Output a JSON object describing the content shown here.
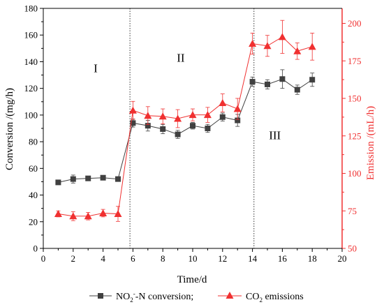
{
  "chart_data": {
    "type": "line",
    "xlabel": "Time/d",
    "ylabel_left": "Conversion /(mg/h)",
    "ylabel_right": "Emission /(mL/h)",
    "xlim": [
      0,
      20
    ],
    "ylim_left": [
      0,
      180
    ],
    "ylim_right": [
      50,
      210
    ],
    "x_ticks": [
      0,
      2,
      4,
      6,
      8,
      10,
      12,
      14,
      16,
      18,
      20
    ],
    "y_ticks_left": [
      0,
      20,
      40,
      60,
      80,
      100,
      120,
      140,
      160,
      180
    ],
    "y_ticks_right": [
      50,
      75,
      100,
      125,
      150,
      175,
      200
    ],
    "phase_dividers": [
      5.8,
      14.1
    ],
    "phase_labels": [
      {
        "text": "I",
        "x": 3.5,
        "y": 132
      },
      {
        "text": "II",
        "x": 9.2,
        "y": 140
      },
      {
        "text": "III",
        "x": 15.5,
        "y": 82
      }
    ],
    "legend_position": "bottom",
    "series": [
      {
        "name": "NO2−-N conversion;",
        "axis": "left",
        "color": "#404040",
        "marker": "square",
        "x": [
          1,
          2,
          3,
          4,
          5,
          6,
          7,
          8,
          9,
          10,
          11,
          12,
          13,
          14,
          15,
          16,
          17,
          18
        ],
        "y": [
          49.5,
          52,
          52.5,
          53,
          52,
          94,
          92,
          89.5,
          85.5,
          92,
          90,
          98.5,
          96,
          125,
          123,
          127,
          119,
          126.5
        ],
        "err": [
          1.5,
          3,
          1,
          1,
          1.5,
          3,
          4,
          3.5,
          3,
          2.5,
          3,
          3,
          4.5,
          3.5,
          3.5,
          7,
          3.5,
          5
        ]
      },
      {
        "name": "CO2 emissions",
        "axis": "right",
        "color": "#f03030",
        "marker": "triangle",
        "x": [
          1,
          2,
          3,
          4,
          5,
          6,
          7,
          8,
          9,
          10,
          11,
          12,
          13,
          14,
          15,
          16,
          17,
          18
        ],
        "y": [
          73,
          71.5,
          71.5,
          73.5,
          73,
          142,
          138.5,
          138,
          136.5,
          139,
          139,
          147,
          143,
          186.5,
          185,
          191,
          181.5,
          184.5
        ],
        "err": [
          2,
          3,
          2.5,
          2.5,
          5,
          6,
          6,
          5,
          6,
          4,
          5,
          6,
          7,
          7,
          7,
          11,
          5.5,
          9
        ]
      }
    ]
  },
  "legend": {
    "item1_prefix": "NO",
    "item1_sub": "2",
    "item1_sup": "-",
    "item1_suffix": "-N conversion;",
    "item2_prefix": "CO",
    "item2_sub": "2",
    "item2_suffix": " emissions"
  }
}
